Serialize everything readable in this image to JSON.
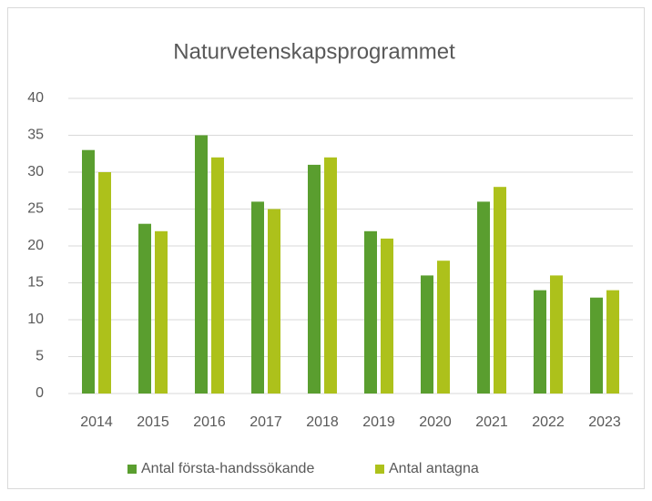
{
  "chart_data": {
    "type": "bar",
    "title": "Naturvetenskapsprogrammet",
    "categories": [
      "2014",
      "2015",
      "2016",
      "2017",
      "2018",
      "2019",
      "2020",
      "2021",
      "2022",
      "2023"
    ],
    "series": [
      {
        "name": "Antal första-handssökande",
        "color": "#5a9e2f",
        "values": [
          33,
          23,
          35,
          26,
          31,
          22,
          16,
          26,
          14,
          13
        ]
      },
      {
        "name": "Antal antagna",
        "color": "#adc11b",
        "values": [
          30,
          22,
          32,
          25,
          32,
          21,
          18,
          28,
          16,
          14
        ]
      }
    ],
    "ylim": [
      0,
      40
    ],
    "yticks": [
      0,
      5,
      10,
      15,
      20,
      25,
      30,
      35,
      40
    ],
    "grid": true,
    "legend": "bottom"
  }
}
